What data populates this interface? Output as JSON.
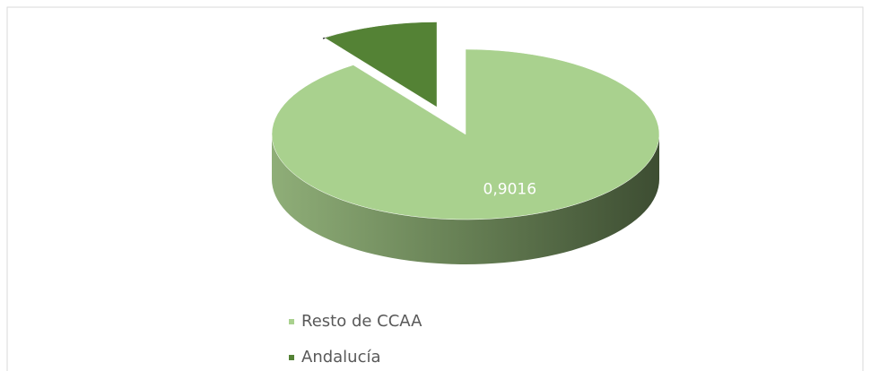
{
  "chart_data": {
    "type": "pie3d",
    "categories": [
      "Resto de CCAA",
      "Andalucía"
    ],
    "values": [
      0.9016,
      0.0984
    ],
    "value_labels": [
      "0,9016",
      null
    ],
    "colors": [
      "#a9d18e",
      "#548235"
    ],
    "legend": "bottom"
  }
}
